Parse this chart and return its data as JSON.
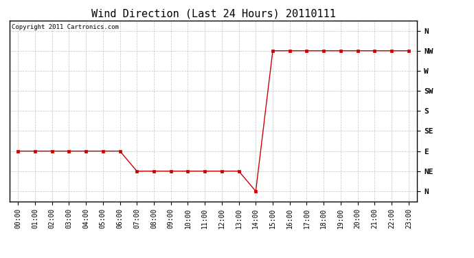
{
  "title": "Wind Direction (Last 24 Hours) 20110111",
  "copyright_text": "Copyright 2011 Cartronics.com",
  "x_labels": [
    "00:00",
    "01:00",
    "02:00",
    "03:00",
    "04:00",
    "05:00",
    "06:00",
    "07:00",
    "08:00",
    "09:00",
    "10:00",
    "11:00",
    "12:00",
    "13:00",
    "14:00",
    "15:00",
    "16:00",
    "17:00",
    "18:00",
    "19:00",
    "20:00",
    "21:00",
    "22:00",
    "23:00"
  ],
  "y_labels": [
    "N",
    "NW",
    "W",
    "SW",
    "S",
    "SE",
    "E",
    "NE",
    "N"
  ],
  "y_values": [
    8,
    7,
    6,
    5,
    4,
    3,
    2,
    1,
    0
  ],
  "wind_data": [
    2,
    2,
    2,
    2,
    2,
    2,
    2,
    1,
    1,
    1,
    1,
    1,
    1,
    1,
    0,
    7,
    7,
    7,
    7,
    7,
    7,
    7,
    7,
    7
  ],
  "line_color": "#cc0000",
  "marker": "s",
  "marker_size": 2.5,
  "bg_color": "#ffffff",
  "grid_color": "#aaaaaa",
  "title_fontsize": 11,
  "label_fontsize": 8,
  "tick_fontsize": 7,
  "copyright_fontsize": 6.5
}
